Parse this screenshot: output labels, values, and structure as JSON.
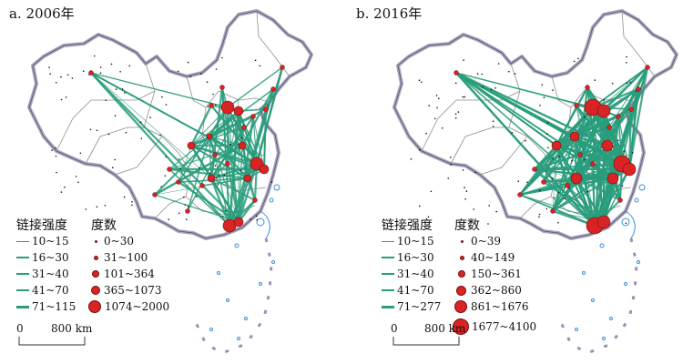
{
  "panels": [
    {
      "title": "a. 2006年",
      "link_legend": {
        "title": "链接强度",
        "items": [
          "10~15",
          "16~30",
          "31~40",
          "41~70",
          "71~115"
        ]
      },
      "degree_legend": {
        "title": "度数",
        "items": [
          "0~30",
          "31~100",
          "101~364",
          "365~1073",
          "1074~2000"
        ]
      },
      "scale": {
        "zero": "0",
        "distance": "800 km"
      }
    },
    {
      "title": "b. 2016年",
      "link_legend": {
        "title": "链接强度",
        "items": [
          "10~15",
          "16~30",
          "31~40",
          "41~70",
          "71~277"
        ]
      },
      "degree_legend": {
        "title": "度数",
        "items": [
          "0~39",
          "40~149",
          "150~361",
          "362~860",
          "861~1676",
          "1677~4100"
        ]
      },
      "scale": {
        "zero": "0",
        "distance": "800 km"
      }
    }
  ],
  "colors": {
    "link": "#2a9d7c",
    "node": "#d82424",
    "border": "#9a92b8",
    "province": "#8f8f8f",
    "coast": "#3a8fd6"
  }
}
